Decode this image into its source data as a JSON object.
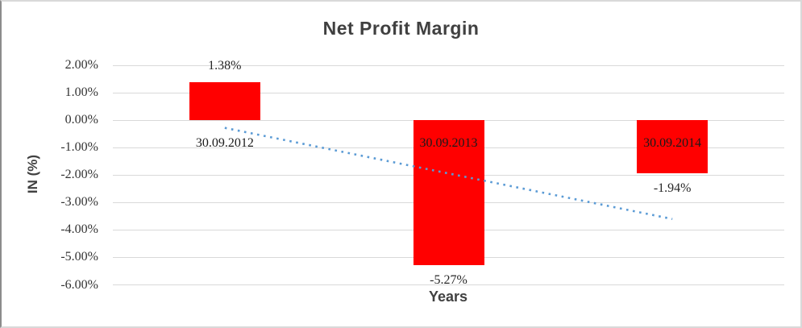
{
  "window": {
    "background": "#ffffff",
    "frame_border_color": "#d9d9d9",
    "frame_left_border_color": "#8c8c8c"
  },
  "chart_data": {
    "type": "bar",
    "title": "Net Profit Margin",
    "xlabel": "Years",
    "ylabel": "IN (%)",
    "categories": [
      "30.09.2012",
      "30.09.2013",
      "30.09.2014"
    ],
    "values": [
      1.38,
      -5.27,
      -1.94
    ],
    "value_labels": [
      "1.38%",
      "-5.27%",
      "-1.94%"
    ],
    "ytick_values": [
      2,
      1,
      0,
      -1,
      -2,
      -3,
      -4,
      -5,
      -6
    ],
    "ytick_labels": [
      "2.00%",
      "1.00%",
      "0.00%",
      "-1.00%",
      "-2.00%",
      "-3.00%",
      "-4.00%",
      "-5.00%",
      "-6.00%"
    ],
    "ylim": [
      -6,
      2
    ],
    "grid": true,
    "legend_position": "none",
    "bar_color": "#ff0000",
    "gridline_color": "#d9d9d9",
    "title_color": "#404040",
    "axis_text_color": "#333333",
    "label_text_color": "#1a1a1a",
    "trendline": {
      "style": "dotted",
      "color": "#5b9bd5",
      "endpoint_values": [
        -0.28,
        -3.6
      ]
    }
  }
}
